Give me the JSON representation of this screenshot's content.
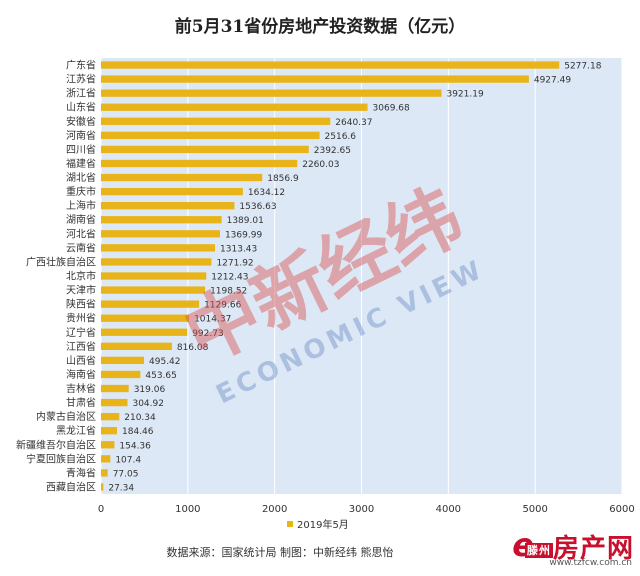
{
  "page": {
    "source_text": "数据来源：国家统计局   制图：中新经纬 熊思怡",
    "watermark": {
      "main": "中新经纬",
      "sub": "ECONOMIC VIEW"
    },
    "logo": {
      "mark": "e",
      "badge": "滕州",
      "name": "房产网",
      "url": "www.tzfcw.com.cn"
    }
  },
  "chart_data": {
    "type": "bar",
    "orientation": "horizontal",
    "title": "前5月31省份房地产投资数据（亿元）",
    "categories": [
      "广东省",
      "江苏省",
      "浙江省",
      "山东省",
      "安徽省",
      "河南省",
      "四川省",
      "福建省",
      "湖北省",
      "重庆市",
      "上海市",
      "湖南省",
      "河北省",
      "云南省",
      "广西壮族自治区",
      "北京市",
      "天津市",
      "陕西省",
      "贵州省",
      "辽宁省",
      "江西省",
      "山西省",
      "海南省",
      "吉林省",
      "甘肃省",
      "内蒙古自治区",
      "黑龙江省",
      "新疆维吾尔自治区",
      "宁夏回族自治区",
      "青海省",
      "西藏自治区"
    ],
    "series": [
      {
        "name": "2019年5月",
        "values": [
          5277.18,
          4927.49,
          3921.19,
          3069.68,
          2640.37,
          2516.6,
          2392.65,
          2260.03,
          1856.9,
          1634.12,
          1536.63,
          1389.01,
          1369.99,
          1313.43,
          1271.92,
          1212.43,
          1198.52,
          1129.66,
          1014.37,
          992.73,
          816.08,
          495.42,
          453.65,
          319.06,
          304.92,
          210.34,
          184.46,
          154.36,
          107.4,
          77.05,
          27.34
        ],
        "labels": [
          "5277.18",
          "4927.49",
          "3921.19",
          "3069.68",
          "2640.37",
          "2516.6",
          "2392.65",
          "2260.03",
          "1856.9",
          "1634.12",
          "1536.63",
          "1389.01",
          "1369.99",
          "1313.43",
          "1271.92",
          "1212.43",
          "1198.52",
          "1129.66",
          "1014.37",
          "992.73",
          "816.08",
          "495.42",
          "453.65",
          "319.06",
          "304.92",
          "210.34",
          "184.46",
          "154.36",
          "107.4",
          "77.05",
          "27.34"
        ]
      }
    ],
    "x_ticks": [
      "0",
      "1000",
      "2000",
      "3000",
      "4000",
      "5000",
      "6000"
    ],
    "xlim": [
      0,
      6000
    ],
    "legend_position": "bottom",
    "grid": "vertical",
    "colors": {
      "bar": "#e8b41a",
      "plot_bg": "#dde8f6",
      "grid": "#ffffff"
    }
  }
}
